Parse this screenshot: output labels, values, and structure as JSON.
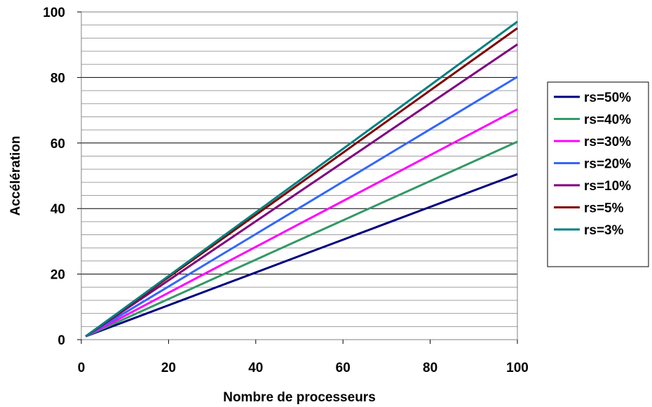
{
  "chart_data": {
    "type": "line",
    "xlabel": "Nombre de processeurs",
    "ylabel": "Accélération",
    "xlim": [
      0,
      100
    ],
    "ylim": [
      0,
      100
    ],
    "x_ticks": [
      "0",
      "20",
      "40",
      "60",
      "80",
      "100"
    ],
    "y_ticks": [
      "0",
      "20",
      "40",
      "60",
      "80",
      "100"
    ],
    "x_tick_values": [
      0,
      20,
      40,
      60,
      80,
      100
    ],
    "y_tick_values": [
      0,
      20,
      40,
      60,
      80,
      100
    ],
    "y_minor_step": 4,
    "grid": true,
    "legend_position": "right",
    "x": [
      1,
      5,
      10,
      20,
      30,
      40,
      50,
      60,
      70,
      80,
      90,
      100
    ],
    "series": [
      {
        "name": "rs=50%",
        "color": "#000080",
        "values": [
          1,
          3.0,
          5.5,
          10.5,
          15.5,
          20.5,
          25.5,
          30.5,
          35.5,
          40.5,
          45.5,
          50.5
        ]
      },
      {
        "name": "rs=40%",
        "color": "#339966",
        "values": [
          1,
          3.4,
          6.4,
          12.4,
          18.4,
          24.4,
          30.4,
          36.4,
          42.4,
          48.4,
          54.4,
          60.4
        ]
      },
      {
        "name": "rs=30%",
        "color": "#FF00FF",
        "values": [
          1,
          3.8,
          7.3,
          14.3,
          21.3,
          28.3,
          35.3,
          42.3,
          49.3,
          56.3,
          63.3,
          70.3
        ]
      },
      {
        "name": "rs=20%",
        "color": "#3366FF",
        "values": [
          1,
          4.2,
          8.2,
          16.2,
          24.2,
          32.2,
          40.2,
          48.2,
          56.2,
          64.2,
          72.2,
          80.2
        ]
      },
      {
        "name": "rs=10%",
        "color": "#800080",
        "values": [
          1,
          4.6,
          9.1,
          18.1,
          27.1,
          36.1,
          45.1,
          54.1,
          63.1,
          72.1,
          81.1,
          90.1
        ]
      },
      {
        "name": "rs=5%",
        "color": "#800000",
        "values": [
          1,
          4.8,
          9.55,
          19.05,
          28.55,
          38.05,
          47.55,
          57.05,
          66.55,
          76.05,
          85.55,
          95.05
        ]
      },
      {
        "name": "rs=3%",
        "color": "#008080",
        "values": [
          1,
          4.88,
          9.73,
          19.43,
          29.13,
          38.83,
          48.53,
          58.23,
          67.93,
          77.63,
          87.33,
          97.03
        ]
      }
    ]
  }
}
